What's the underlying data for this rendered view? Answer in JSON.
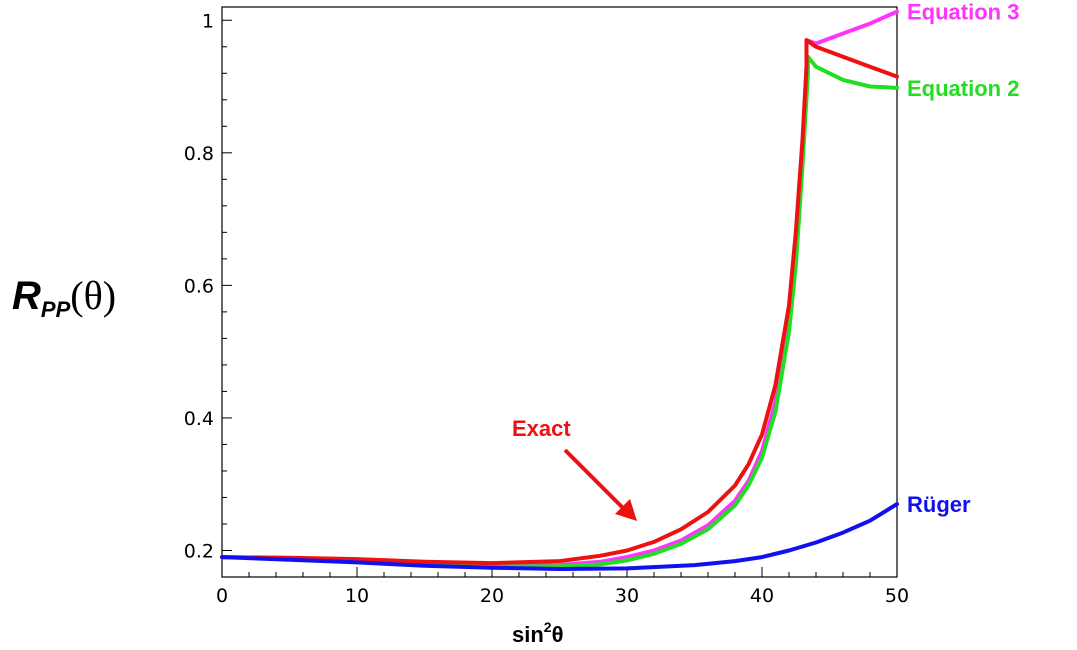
{
  "chart_data": {
    "type": "line",
    "xlabel": {
      "base": "sin",
      "sup": "2",
      "var": "θ"
    },
    "ylabel": {
      "main": "R",
      "sub": "PP",
      "arg": "(θ)"
    },
    "xlim": [
      0,
      50
    ],
    "ylim": [
      0.16,
      1.02
    ],
    "xticks": [
      0,
      10,
      20,
      30,
      40,
      50
    ],
    "yticks": [
      0.2,
      0.4,
      0.6,
      0.8,
      1
    ],
    "ytick_labels": [
      "0.2",
      "0.4",
      "0.6",
      "0.8",
      "1"
    ],
    "grid": false,
    "series": [
      {
        "name": "Equation 3",
        "color": "#ff33ff",
        "x": [
          0,
          5,
          10,
          15,
          20,
          25,
          28,
          30,
          32,
          34,
          36,
          38,
          39,
          40,
          41,
          42,
          42.5,
          43,
          43.3,
          43.3,
          44,
          46,
          48,
          50
        ],
        "y": [
          0.19,
          0.188,
          0.184,
          0.18,
          0.177,
          0.178,
          0.183,
          0.19,
          0.2,
          0.215,
          0.238,
          0.275,
          0.305,
          0.35,
          0.425,
          0.55,
          0.66,
          0.8,
          0.93,
          0.97,
          0.965,
          0.98,
          0.995,
          1.013
        ]
      },
      {
        "name": "Equation 2",
        "color": "#22dd22",
        "x": [
          0,
          5,
          10,
          15,
          20,
          25,
          28,
          30,
          32,
          34,
          36,
          38,
          39,
          40,
          41,
          42,
          42.5,
          43,
          43.4,
          43.4,
          44,
          46,
          48,
          50
        ],
        "y": [
          0.19,
          0.188,
          0.184,
          0.179,
          0.176,
          0.176,
          0.179,
          0.185,
          0.195,
          0.21,
          0.232,
          0.268,
          0.298,
          0.34,
          0.41,
          0.53,
          0.63,
          0.78,
          0.92,
          0.945,
          0.93,
          0.91,
          0.9,
          0.898
        ]
      },
      {
        "name": "Exact",
        "color": "#ee1111",
        "x": [
          0,
          5,
          10,
          15,
          20,
          25,
          28,
          30,
          32,
          34,
          36,
          38,
          39,
          40,
          41,
          42,
          42.5,
          43,
          43.3,
          43.3,
          44,
          46,
          48,
          50
        ],
        "y": [
          0.19,
          0.189,
          0.187,
          0.183,
          0.181,
          0.184,
          0.192,
          0.2,
          0.213,
          0.232,
          0.258,
          0.298,
          0.33,
          0.375,
          0.45,
          0.57,
          0.68,
          0.82,
          0.93,
          0.97,
          0.96,
          0.945,
          0.93,
          0.915
        ]
      },
      {
        "name": "Rüger",
        "color": "#1111ee",
        "x": [
          0,
          5,
          10,
          15,
          20,
          25,
          30,
          35,
          38,
          40,
          42,
          44,
          46,
          48,
          50
        ],
        "y": [
          0.19,
          0.186,
          0.182,
          0.177,
          0.174,
          0.172,
          0.173,
          0.178,
          0.184,
          0.19,
          0.2,
          0.212,
          0.227,
          0.245,
          0.27
        ]
      }
    ],
    "annotations": [
      {
        "text": "Exact",
        "color": "#ee1111"
      }
    ]
  }
}
